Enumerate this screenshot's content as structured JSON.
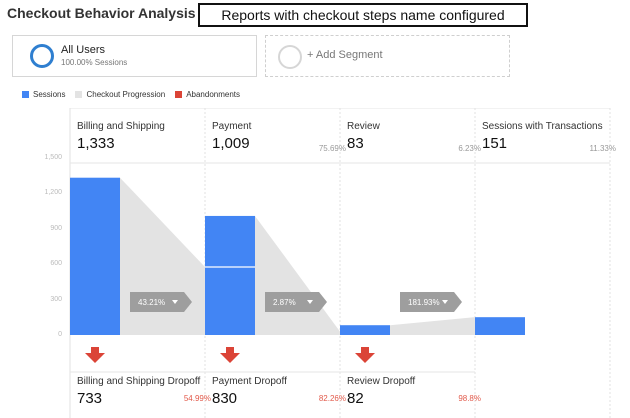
{
  "header": {
    "title": "Checkout Behavior Analysis",
    "callout": "Reports with checkout steps name configured"
  },
  "segments": {
    "active": {
      "name": "All Users",
      "sub": "100.00% Sessions"
    },
    "add_label": "+ Add Segment"
  },
  "legend": [
    {
      "label": "Sessions",
      "color": "#4285f4"
    },
    {
      "label": "Checkout Progression",
      "color": "#e3e3e3"
    },
    {
      "label": "Abandonments",
      "color": "#db4437"
    }
  ],
  "chart_data": {
    "type": "bar",
    "categories": [
      "Billing and Shipping",
      "Payment",
      "Review",
      "Sessions with Transactions"
    ],
    "values": [
      1333,
      1009,
      83,
      151
    ],
    "carried_in": [
      0,
      576,
      0,
      0
    ],
    "value_labels": [
      "1,333",
      "1,009",
      "83",
      "151"
    ],
    "step_percent": [
      "",
      "75.69%",
      "6.23%",
      "11.33%"
    ],
    "progression_percent": [
      "43.21%",
      "2.87%",
      "181.93%"
    ],
    "progression_values": [
      576,
      29,
      151
    ],
    "dropoffs": [
      {
        "name": "Billing and Shipping Dropoff",
        "value": "733",
        "percent": "54.99%",
        "v": 733
      },
      {
        "name": "Payment Dropoff",
        "value": "830",
        "percent": "82.26%",
        "v": 830
      },
      {
        "name": "Review Dropoff",
        "value": "82",
        "percent": "98.8%",
        "v": 82
      }
    ],
    "y_ticks": [
      "1,500",
      "1,200",
      "900",
      "600",
      "300",
      "0"
    ],
    "ylim": [
      0,
      1500
    ],
    "colors": {
      "bar": "#4285f4",
      "progression": "#e3e3e3",
      "dropoff": "#db4437",
      "arrow_label": "#9e9e9e"
    }
  }
}
